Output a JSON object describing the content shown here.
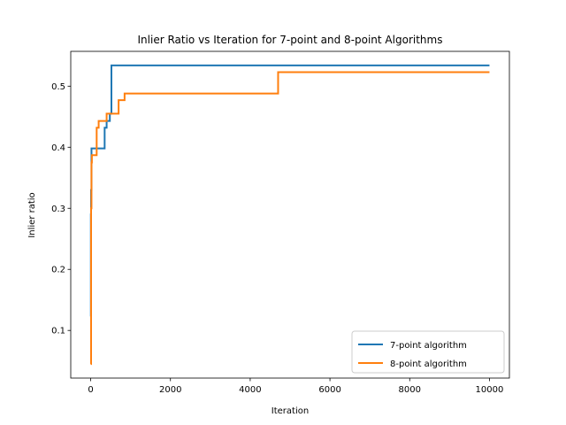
{
  "chart_data": {
    "type": "line",
    "title": "Inlier Ratio vs Iteration for 7-point and 8-point Algorithms",
    "xlabel": "Iteration",
    "ylabel": "Inlier ratio",
    "xlim": [
      -500,
      10500
    ],
    "ylim": [
      0.022,
      0.557
    ],
    "xticks": [
      0,
      2000,
      4000,
      6000,
      8000,
      10000
    ],
    "yticks": [
      0.1,
      0.2,
      0.3,
      0.4,
      0.5
    ],
    "xtick_labels": [
      "0",
      "2000",
      "4000",
      "6000",
      "8000",
      "10000"
    ],
    "ytick_labels": [
      "0.1",
      "0.2",
      "0.3",
      "0.4",
      "0.5"
    ],
    "grid": false,
    "legend_position": "lower-right",
    "series": [
      {
        "name": "7-point algorithm",
        "color": "#1f77b4",
        "step": true,
        "x": [
          0,
          5,
          10,
          20,
          350,
          400,
          480,
          520,
          10000
        ],
        "y": [
          0.123,
          0.29,
          0.33,
          0.398,
          0.432,
          0.443,
          0.455,
          0.534,
          0.534
        ]
      },
      {
        "name": "8-point algorithm",
        "color": "#ff7f0e",
        "step": true,
        "x": [
          0,
          10,
          20,
          30,
          150,
          200,
          400,
          500,
          700,
          850,
          4700,
          10000
        ],
        "y": [
          0.045,
          0.3,
          0.375,
          0.387,
          0.432,
          0.443,
          0.455,
          0.455,
          0.477,
          0.488,
          0.523,
          0.523
        ]
      }
    ]
  }
}
